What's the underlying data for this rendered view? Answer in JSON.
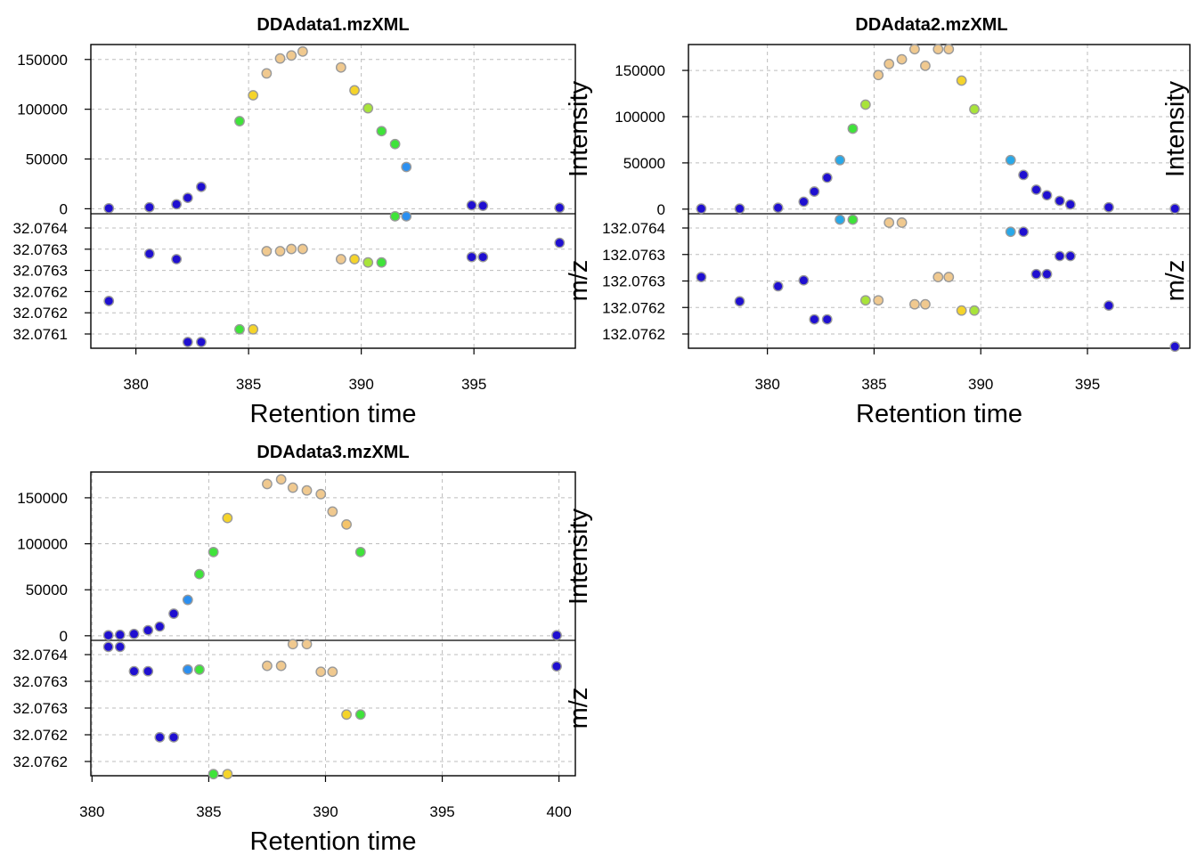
{
  "chart_data": [
    {
      "type": "scatter",
      "title": "DDAdata1.mzXML",
      "xlabel": "Retention time",
      "top_ylabel": "Intensity",
      "bottom_ylabel": "m/z",
      "xlim": [
        378,
        399.5
      ],
      "x_ticks": [
        "380",
        "385",
        "390",
        "395"
      ],
      "top_ylim": [
        -5000,
        165000
      ],
      "top_y_ticks": [
        "150000",
        "100000",
        "50000",
        "0"
      ],
      "bottom_ylim": [
        132.07606,
        132.07643
      ],
      "bottom_y_ticks": [
        "32.0764",
        "32.0763",
        "32.0763",
        "32.0762",
        "32.0762",
        "32.0761"
      ],
      "top_points": [
        {
          "x": 378.8,
          "y": 500,
          "c": "#1f0fd0"
        },
        {
          "x": 380.6,
          "y": 1500,
          "c": "#1f0fd0"
        },
        {
          "x": 381.8,
          "y": 4500,
          "c": "#1f0fd0"
        },
        {
          "x": 382.3,
          "y": 11000,
          "c": "#1f0fd0"
        },
        {
          "x": 382.9,
          "y": 22000,
          "c": "#1f0fd0"
        },
        {
          "x": 384.6,
          "y": 88000,
          "c": "#3fe33a"
        },
        {
          "x": 385.2,
          "y": 114000,
          "c": "#f5d42a"
        },
        {
          "x": 385.8,
          "y": 136000,
          "c": "#f0c98f"
        },
        {
          "x": 386.4,
          "y": 151000,
          "c": "#f0c98f"
        },
        {
          "x": 386.9,
          "y": 154000,
          "c": "#f0c98f"
        },
        {
          "x": 387.4,
          "y": 158000,
          "c": "#f0c98f"
        },
        {
          "x": 389.1,
          "y": 142000,
          "c": "#f0c98f"
        },
        {
          "x": 389.7,
          "y": 119000,
          "c": "#f5d42a"
        },
        {
          "x": 390.3,
          "y": 101000,
          "c": "#a8e43a"
        },
        {
          "x": 390.9,
          "y": 78000,
          "c": "#3fe33a"
        },
        {
          "x": 391.5,
          "y": 65000,
          "c": "#3fe33a"
        },
        {
          "x": 392.0,
          "y": 42000,
          "c": "#2b8ff0"
        },
        {
          "x": 394.9,
          "y": 3500,
          "c": "#1f0fd0"
        },
        {
          "x": 395.4,
          "y": 3000,
          "c": "#1f0fd0"
        },
        {
          "x": 398.8,
          "y": 1000,
          "c": "#1f0fd0"
        }
      ],
      "bottom_points": [
        {
          "x": 378.8,
          "y": 132.07619,
          "c": "#1f0fd0"
        },
        {
          "x": 380.6,
          "y": 132.07632,
          "c": "#1f0fd0"
        },
        {
          "x": 381.8,
          "y": 132.076305,
          "c": "#1f0fd0"
        },
        {
          "x": 382.3,
          "y": 132.076077,
          "c": "#1f0fd0"
        },
        {
          "x": 382.9,
          "y": 132.076077,
          "c": "#1f0fd0"
        },
        {
          "x": 384.6,
          "y": 132.076112,
          "c": "#3fe33a"
        },
        {
          "x": 385.2,
          "y": 132.076112,
          "c": "#f5d42a"
        },
        {
          "x": 385.8,
          "y": 132.076327,
          "c": "#f0c98f"
        },
        {
          "x": 386.4,
          "y": 132.076327,
          "c": "#f0c98f"
        },
        {
          "x": 386.9,
          "y": 132.076333,
          "c": "#f0c98f"
        },
        {
          "x": 387.4,
          "y": 132.076333,
          "c": "#f0c98f"
        },
        {
          "x": 389.1,
          "y": 132.076305,
          "c": "#f0c98f"
        },
        {
          "x": 389.7,
          "y": 132.076305,
          "c": "#f5d42a"
        },
        {
          "x": 390.3,
          "y": 132.076296,
          "c": "#a8e43a"
        },
        {
          "x": 390.9,
          "y": 132.076296,
          "c": "#3fe33a"
        },
        {
          "x": 391.5,
          "y": 132.076423,
          "c": "#3fe33a"
        },
        {
          "x": 392.0,
          "y": 132.076423,
          "c": "#2b8ff0"
        },
        {
          "x": 394.9,
          "y": 132.076311,
          "c": "#1f0fd0"
        },
        {
          "x": 395.4,
          "y": 132.076311,
          "c": "#1f0fd0"
        },
        {
          "x": 398.8,
          "y": 132.07635,
          "c": "#1f0fd0"
        }
      ]
    },
    {
      "type": "scatter",
      "title": "DDAdata2.mzXML",
      "xlabel": "Retention time",
      "top_ylabel": "Intensity",
      "bottom_ylabel": "m/z",
      "xlim": [
        376.3,
        399.8
      ],
      "x_ticks": [
        "380",
        "385",
        "390",
        "395"
      ],
      "top_ylim": [
        -5000,
        178000
      ],
      "top_y_ticks": [
        "150000",
        "100000",
        "50000",
        "0"
      ],
      "bottom_ylim": [
        132.07613,
        132.07654
      ],
      "bottom_y_ticks": [
        "132.0764",
        "132.0763",
        "132.0763",
        "132.0762",
        "132.0762"
      ],
      "top_points": [
        {
          "x": 376.9,
          "y": 500,
          "c": "#1f0fd0"
        },
        {
          "x": 378.7,
          "y": 500,
          "c": "#1f0fd0"
        },
        {
          "x": 380.5,
          "y": 1500,
          "c": "#1f0fd0"
        },
        {
          "x": 381.7,
          "y": 8000,
          "c": "#1f0fd0"
        },
        {
          "x": 382.2,
          "y": 19000,
          "c": "#1f0fd0"
        },
        {
          "x": 382.8,
          "y": 34000,
          "c": "#1f0fd0"
        },
        {
          "x": 383.4,
          "y": 53000,
          "c": "#29a8e8"
        },
        {
          "x": 384.0,
          "y": 87000,
          "c": "#3fe33a"
        },
        {
          "x": 384.6,
          "y": 113000,
          "c": "#a8e43a"
        },
        {
          "x": 385.2,
          "y": 145000,
          "c": "#f0c98f"
        },
        {
          "x": 385.7,
          "y": 157000,
          "c": "#f0c98f"
        },
        {
          "x": 386.3,
          "y": 162000,
          "c": "#f0c98f"
        },
        {
          "x": 386.9,
          "y": 173000,
          "c": "#f0c98f"
        },
        {
          "x": 387.4,
          "y": 155000,
          "c": "#f0c98f"
        },
        {
          "x": 388.0,
          "y": 173000,
          "c": "#f0c98f"
        },
        {
          "x": 388.5,
          "y": 173000,
          "c": "#f0c98f"
        },
        {
          "x": 389.1,
          "y": 139000,
          "c": "#f5d42a"
        },
        {
          "x": 389.7,
          "y": 108000,
          "c": "#a8e43a"
        },
        {
          "x": 391.4,
          "y": 53000,
          "c": "#29a8e8"
        },
        {
          "x": 392.0,
          "y": 37000,
          "c": "#1f0fd0"
        },
        {
          "x": 392.6,
          "y": 21000,
          "c": "#1f0fd0"
        },
        {
          "x": 393.1,
          "y": 15000,
          "c": "#1f0fd0"
        },
        {
          "x": 393.7,
          "y": 9000,
          "c": "#1f0fd0"
        },
        {
          "x": 394.2,
          "y": 5000,
          "c": "#1f0fd0"
        },
        {
          "x": 396.0,
          "y": 2000,
          "c": "#1f0fd0"
        },
        {
          "x": 399.1,
          "y": 500,
          "c": "#1f0fd0"
        }
      ],
      "bottom_points": [
        {
          "x": 376.9,
          "y": 132.076347,
          "c": "#1f0fd0"
        },
        {
          "x": 378.7,
          "y": 132.076273,
          "c": "#1f0fd0"
        },
        {
          "x": 380.5,
          "y": 132.076319,
          "c": "#1f0fd0"
        },
        {
          "x": 381.7,
          "y": 132.076337,
          "c": "#1f0fd0"
        },
        {
          "x": 382.2,
          "y": 132.076218,
          "c": "#1f0fd0"
        },
        {
          "x": 382.8,
          "y": 132.076218,
          "c": "#1f0fd0"
        },
        {
          "x": 383.4,
          "y": 132.076522,
          "c": "#29a8e8"
        },
        {
          "x": 384.0,
          "y": 132.076522,
          "c": "#3fe33a"
        },
        {
          "x": 384.6,
          "y": 132.076276,
          "c": "#a8e43a"
        },
        {
          "x": 385.2,
          "y": 132.076276,
          "c": "#f0c98f"
        },
        {
          "x": 385.7,
          "y": 132.076513,
          "c": "#f0c98f"
        },
        {
          "x": 386.3,
          "y": 132.076513,
          "c": "#f0c98f"
        },
        {
          "x": 386.9,
          "y": 132.076264,
          "c": "#f0c98f"
        },
        {
          "x": 387.4,
          "y": 132.076264,
          "c": "#f0c98f"
        },
        {
          "x": 388.0,
          "y": 132.076347,
          "c": "#f0c98f"
        },
        {
          "x": 388.5,
          "y": 132.076347,
          "c": "#f0c98f"
        },
        {
          "x": 389.1,
          "y": 132.076245,
          "c": "#f5d42a"
        },
        {
          "x": 389.7,
          "y": 132.076245,
          "c": "#a8e43a"
        },
        {
          "x": 391.4,
          "y": 132.076485,
          "c": "#29a8e8"
        },
        {
          "x": 392.0,
          "y": 132.076485,
          "c": "#1f0fd0"
        },
        {
          "x": 392.6,
          "y": 132.076356,
          "c": "#1f0fd0"
        },
        {
          "x": 393.1,
          "y": 132.076356,
          "c": "#1f0fd0"
        },
        {
          "x": 393.7,
          "y": 132.076411,
          "c": "#1f0fd0"
        },
        {
          "x": 394.2,
          "y": 132.076411,
          "c": "#1f0fd0"
        },
        {
          "x": 396.0,
          "y": 132.07626,
          "c": "#1f0fd0"
        },
        {
          "x": 399.1,
          "y": 132.076135,
          "c": "#1f0fd0"
        }
      ]
    },
    {
      "type": "scatter",
      "title": "DDAdata3.mzXML",
      "xlabel": "Retention time",
      "top_ylabel": "Intensity",
      "bottom_ylabel": "m/z",
      "xlim": [
        379.95,
        400.7
      ],
      "x_ticks": [
        "380",
        "385",
        "390",
        "395",
        "400"
      ],
      "top_ylim": [
        -5000,
        178000
      ],
      "top_y_ticks": [
        "150000",
        "100000",
        "50000",
        "0"
      ],
      "bottom_ylim": [
        132.076175,
        132.076425
      ],
      "bottom_y_ticks": [
        "32.0764",
        "32.0763",
        "32.0763",
        "32.0762",
        "32.0762"
      ],
      "top_points": [
        {
          "x": 380.7,
          "y": 500,
          "c": "#1f0fd0"
        },
        {
          "x": 381.2,
          "y": 1000,
          "c": "#1f0fd0"
        },
        {
          "x": 381.8,
          "y": 2000,
          "c": "#1f0fd0"
        },
        {
          "x": 382.4,
          "y": 6000,
          "c": "#1f0fd0"
        },
        {
          "x": 382.9,
          "y": 10000,
          "c": "#1f0fd0"
        },
        {
          "x": 383.5,
          "y": 24000,
          "c": "#1f0fd0"
        },
        {
          "x": 384.1,
          "y": 39000,
          "c": "#2b8ff0"
        },
        {
          "x": 384.6,
          "y": 67000,
          "c": "#3fe33a"
        },
        {
          "x": 385.2,
          "y": 91000,
          "c": "#3fe33a"
        },
        {
          "x": 385.8,
          "y": 128000,
          "c": "#f5d42a"
        },
        {
          "x": 387.5,
          "y": 165000,
          "c": "#f0c98f"
        },
        {
          "x": 388.1,
          "y": 170000,
          "c": "#f0c98f"
        },
        {
          "x": 388.6,
          "y": 161000,
          "c": "#f0c98f"
        },
        {
          "x": 389.2,
          "y": 158000,
          "c": "#f0c98f"
        },
        {
          "x": 389.8,
          "y": 154000,
          "c": "#f0c98f"
        },
        {
          "x": 390.3,
          "y": 135000,
          "c": "#f0c98f"
        },
        {
          "x": 390.9,
          "y": 121000,
          "c": "#f5c46a"
        },
        {
          "x": 391.5,
          "y": 91000,
          "c": "#3fe33a"
        },
        {
          "x": 399.9,
          "y": 500,
          "c": "#1f0fd0"
        }
      ],
      "bottom_points": [
        {
          "x": 380.7,
          "y": 132.076413,
          "c": "#1f0fd0"
        },
        {
          "x": 381.2,
          "y": 132.076413,
          "c": "#1f0fd0"
        },
        {
          "x": 381.8,
          "y": 132.076368,
          "c": "#1f0fd0"
        },
        {
          "x": 382.4,
          "y": 132.076368,
          "c": "#1f0fd0"
        },
        {
          "x": 382.9,
          "y": 132.076246,
          "c": "#1f0fd0"
        },
        {
          "x": 383.5,
          "y": 132.076246,
          "c": "#1f0fd0"
        },
        {
          "x": 384.1,
          "y": 132.076371,
          "c": "#2b8ff0"
        },
        {
          "x": 384.6,
          "y": 132.076371,
          "c": "#3fe33a"
        },
        {
          "x": 385.2,
          "y": 132.076178,
          "c": "#3fe33a"
        },
        {
          "x": 385.8,
          "y": 132.076178,
          "c": "#f5d42a"
        },
        {
          "x": 387.5,
          "y": 132.076378,
          "c": "#f0c98f"
        },
        {
          "x": 388.1,
          "y": 132.076378,
          "c": "#f0c98f"
        },
        {
          "x": 388.6,
          "y": 132.076418,
          "c": "#f0c98f"
        },
        {
          "x": 389.2,
          "y": 132.076418,
          "c": "#f0c98f"
        },
        {
          "x": 389.8,
          "y": 132.076367,
          "c": "#f0c98f"
        },
        {
          "x": 390.3,
          "y": 132.076367,
          "c": "#f0c98f"
        },
        {
          "x": 390.9,
          "y": 132.076288,
          "c": "#f5d42a"
        },
        {
          "x": 391.5,
          "y": 132.076288,
          "c": "#3fe33a"
        },
        {
          "x": 399.9,
          "y": 132.076377,
          "c": "#1f0fd0"
        }
      ]
    }
  ]
}
